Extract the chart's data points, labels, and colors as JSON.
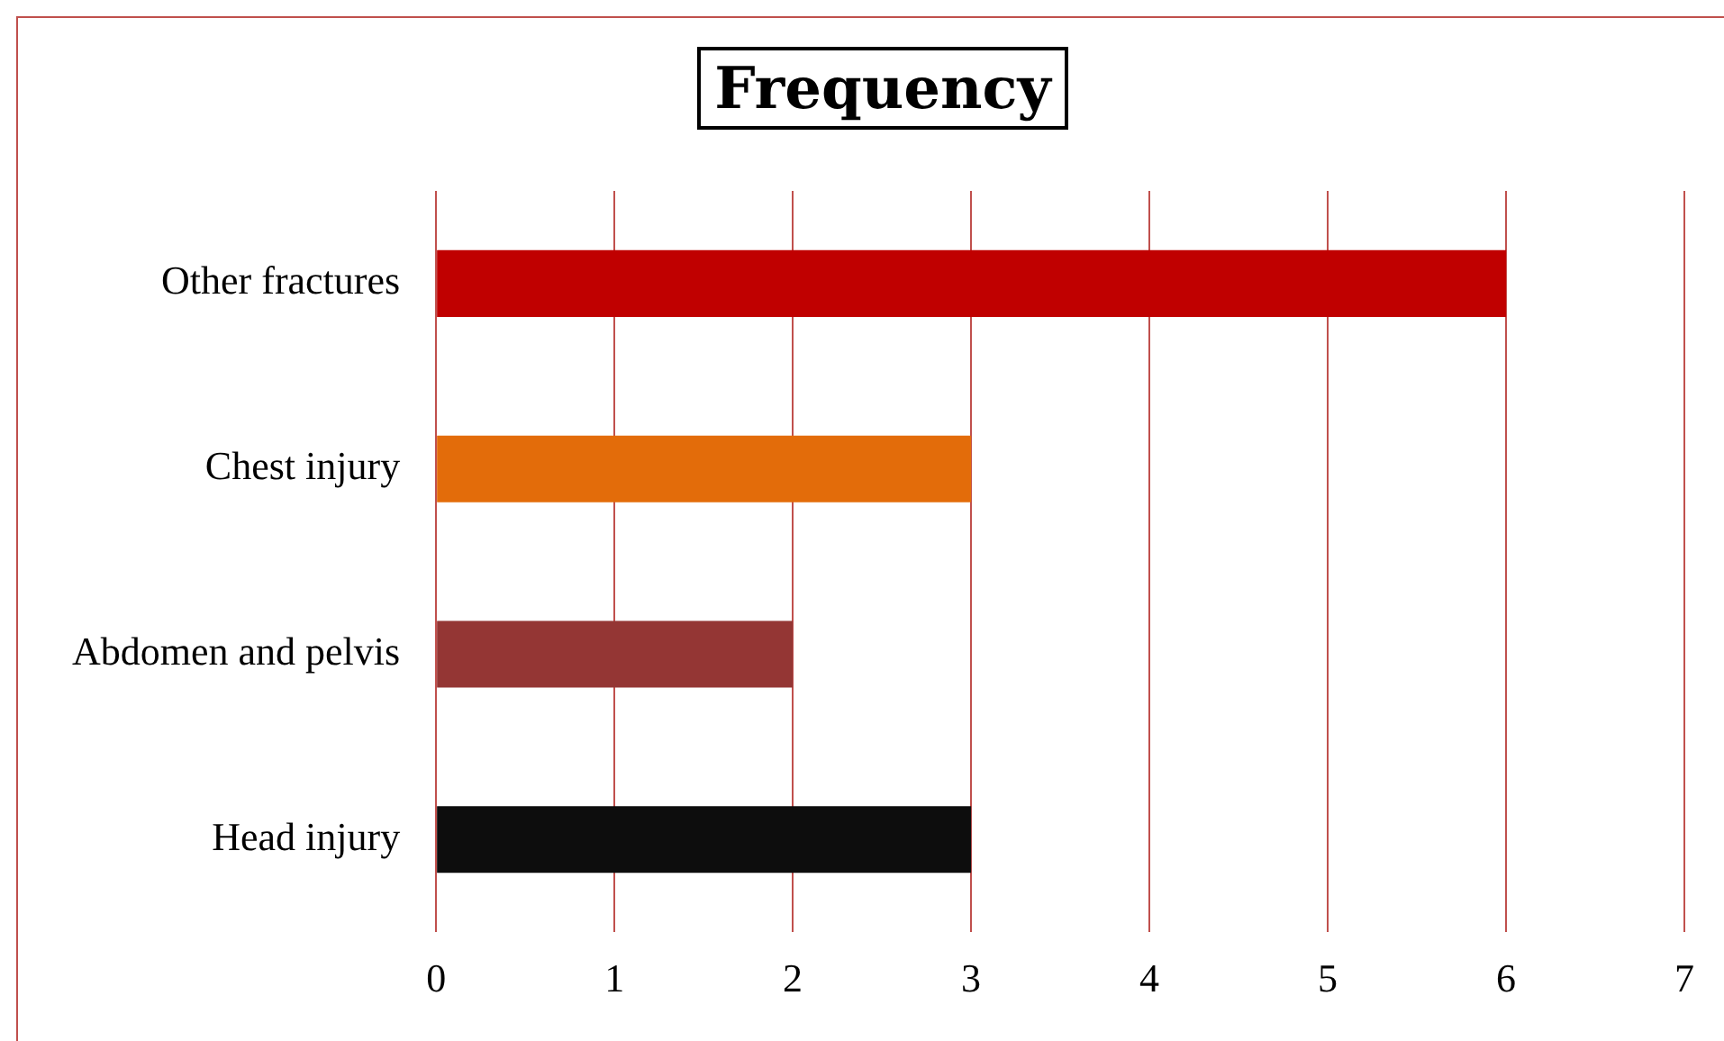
{
  "chart_data": {
    "type": "bar",
    "orientation": "horizontal",
    "title": "Frequency",
    "categories": [
      "Other fractures",
      "Chest injury",
      "Abdomen and pelvis",
      "Head injury"
    ],
    "values": [
      6,
      3,
      2,
      3
    ],
    "colors": [
      "#c00000",
      "#e36c0a",
      "#943634",
      "#0d0d0d"
    ],
    "xlim": [
      0,
      7
    ],
    "xticks": [
      0,
      1,
      2,
      3,
      4,
      5,
      6,
      7
    ],
    "grid": "x",
    "legend": false
  }
}
